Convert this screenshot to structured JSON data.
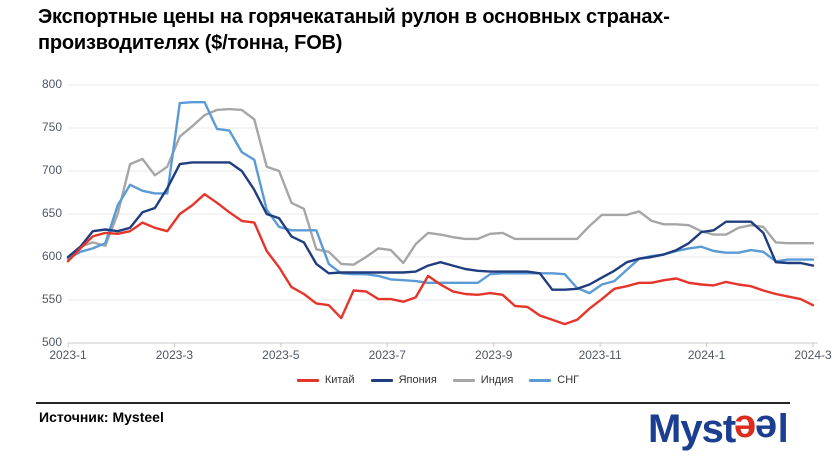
{
  "title": {
    "line1": "Экспортные цены на горячекатаный рулон в основных странах-",
    "line2": "производителях ($/тонна, FOB)"
  },
  "source": {
    "label": "Источник: Mysteel"
  },
  "logo": {
    "part_myst": "Myst",
    "part_e1": "e",
    "part_e2": "e",
    "part_l": "l",
    "blue": "#1c3e91",
    "red": "#dd2b1c"
  },
  "chart_data": {
    "type": "line",
    "title": "Экспортные цены на горячекатаный рулон в основных странах-производителях ($/тонна, FOB)",
    "xlabel": "",
    "ylabel": "$/тонна FOB",
    "ylim": [
      500,
      800
    ],
    "y_ticks": [
      500,
      550,
      600,
      650,
      700,
      750,
      800
    ],
    "x_tick_labels": [
      "2023-1",
      "2023-3",
      "2023-5",
      "2023-7",
      "2023-9",
      "2023-11",
      "2024-1",
      "2024-3"
    ],
    "grid": true,
    "legend_position": "bottom",
    "series": [
      {
        "name": "Китай",
        "color": "#E5352B",
        "values": [
          595,
          610,
          624,
          628,
          627,
          630,
          640,
          634,
          630,
          650,
          660,
          673,
          663,
          652,
          642,
          640,
          607,
          588,
          565,
          557,
          546,
          544,
          529,
          561,
          560,
          551,
          551,
          548,
          553,
          578,
          568,
          560,
          557,
          556,
          558,
          556,
          543,
          542,
          532,
          527,
          522,
          527,
          540,
          551,
          563,
          566,
          570,
          570,
          573,
          575,
          570,
          568,
          567,
          571,
          568,
          566,
          561,
          557,
          554,
          551,
          544
        ]
      },
      {
        "name": "Япония",
        "color": "#1F3D7F",
        "values": [
          600,
          612,
          630,
          632,
          630,
          634,
          652,
          657,
          680,
          708,
          710,
          710,
          710,
          710,
          700,
          678,
          650,
          645,
          624,
          617,
          592,
          581,
          582,
          582,
          582,
          582,
          582,
          582,
          583,
          590,
          594,
          590,
          586,
          584,
          583,
          583,
          583,
          583,
          581,
          562,
          562,
          563,
          568,
          576,
          584,
          594,
          598,
          600,
          603,
          608,
          616,
          629,
          631,
          641,
          641,
          641,
          628,
          594,
          593,
          593,
          590
        ]
      },
      {
        "name": "Индия",
        "color": "#A6A6A6",
        "values": [
          598,
          612,
          617,
          613,
          650,
          708,
          714,
          695,
          705,
          740,
          752,
          765,
          771,
          772,
          771,
          760,
          705,
          700,
          663,
          656,
          609,
          606,
          592,
          591,
          600,
          610,
          608,
          593,
          615,
          628,
          626,
          623,
          621,
          621,
          627,
          628,
          621,
          621,
          621,
          621,
          621,
          621,
          636,
          649,
          649,
          649,
          653,
          642,
          638,
          638,
          637,
          630,
          626,
          626,
          634,
          637,
          635,
          617,
          616,
          616,
          616
        ]
      },
      {
        "name": "СНГ",
        "color": "#5B9BD5",
        "values": [
          598,
          606,
          610,
          616,
          660,
          684,
          677,
          674,
          674,
          779,
          780,
          780,
          749,
          747,
          722,
          713,
          655,
          635,
          631,
          631,
          631,
          592,
          581,
          580,
          580,
          578,
          574,
          573,
          572,
          570,
          570,
          570,
          570,
          570,
          580,
          581,
          581,
          581,
          581,
          581,
          580,
          564,
          558,
          568,
          572,
          585,
          598,
          601,
          603,
          607,
          610,
          612,
          607,
          605,
          605,
          608,
          606,
          595,
          597,
          597,
          597
        ]
      }
    ]
  }
}
